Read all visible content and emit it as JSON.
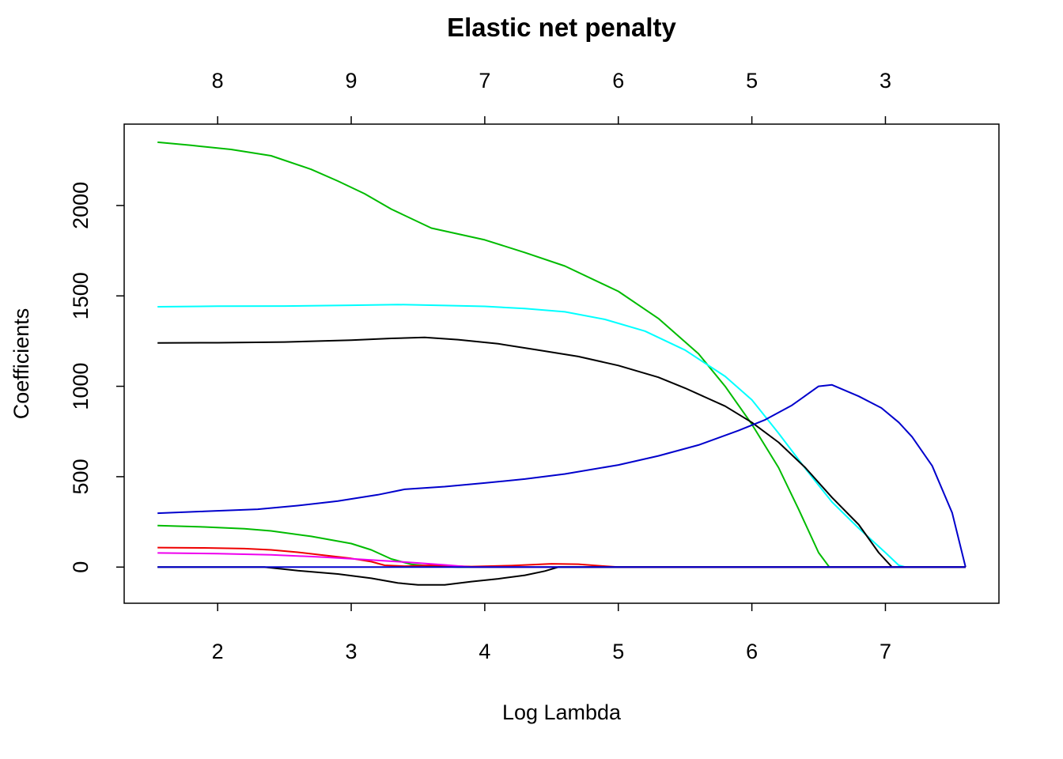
{
  "chart_data": {
    "type": "line",
    "title": "Elastic net penalty",
    "xlabel": "Log Lambda",
    "ylabel": "Coefficients",
    "xlim": [
      1.3,
      7.85
    ],
    "ylim": [
      -200,
      2450
    ],
    "x_ticks": [
      "2",
      "3",
      "4",
      "5",
      "6",
      "7"
    ],
    "y_ticks": [
      "0",
      "500",
      "1000",
      "1500",
      "2000"
    ],
    "top_axis": {
      "tick_positions": [
        2,
        3,
        4,
        5,
        6,
        7
      ],
      "labels": [
        "8",
        "9",
        "7",
        "6",
        "5",
        "3"
      ]
    },
    "grid": false,
    "series": [
      {
        "color": "#00BB00",
        "points": [
          [
            1.55,
            2350
          ],
          [
            1.8,
            2333
          ],
          [
            2.1,
            2310
          ],
          [
            2.4,
            2275
          ],
          [
            2.7,
            2200
          ],
          [
            2.9,
            2135
          ],
          [
            3.1,
            2065
          ],
          [
            3.3,
            1980
          ],
          [
            3.6,
            1875
          ],
          [
            4.0,
            1810
          ],
          [
            4.3,
            1740
          ],
          [
            4.6,
            1665
          ],
          [
            5.0,
            1525
          ],
          [
            5.3,
            1375
          ],
          [
            5.6,
            1180
          ],
          [
            5.8,
            1000
          ],
          [
            6.0,
            790
          ],
          [
            6.2,
            550
          ],
          [
            6.35,
            320
          ],
          [
            6.5,
            80
          ],
          [
            6.58,
            0
          ],
          [
            7.6,
            0
          ]
        ]
      },
      {
        "color": "#00FFFF",
        "points": [
          [
            1.55,
            1440
          ],
          [
            2.0,
            1443
          ],
          [
            2.5,
            1444
          ],
          [
            3.0,
            1448
          ],
          [
            3.35,
            1452
          ],
          [
            3.7,
            1447
          ],
          [
            4.0,
            1442
          ],
          [
            4.3,
            1430
          ],
          [
            4.6,
            1412
          ],
          [
            4.9,
            1370
          ],
          [
            5.2,
            1305
          ],
          [
            5.5,
            1200
          ],
          [
            5.8,
            1055
          ],
          [
            6.0,
            925
          ],
          [
            6.2,
            740
          ],
          [
            6.4,
            545
          ],
          [
            6.6,
            360
          ],
          [
            6.8,
            215
          ],
          [
            7.0,
            80
          ],
          [
            7.1,
            10
          ],
          [
            7.15,
            0
          ],
          [
            7.6,
            0
          ]
        ]
      },
      {
        "color": "#000000",
        "points": [
          [
            1.55,
            1240
          ],
          [
            2.0,
            1241
          ],
          [
            2.5,
            1245
          ],
          [
            3.0,
            1255
          ],
          [
            3.3,
            1265
          ],
          [
            3.55,
            1270
          ],
          [
            3.8,
            1258
          ],
          [
            4.1,
            1235
          ],
          [
            4.4,
            1200
          ],
          [
            4.7,
            1165
          ],
          [
            5.0,
            1115
          ],
          [
            5.3,
            1050
          ],
          [
            5.5,
            990
          ],
          [
            5.8,
            890
          ],
          [
            6.0,
            800
          ],
          [
            6.2,
            690
          ],
          [
            6.4,
            550
          ],
          [
            6.6,
            385
          ],
          [
            6.8,
            235
          ],
          [
            6.95,
            80
          ],
          [
            7.05,
            0
          ],
          [
            7.6,
            0
          ]
        ]
      },
      {
        "color": "#0000CC",
        "points": [
          [
            1.55,
            298
          ],
          [
            1.9,
            308
          ],
          [
            2.3,
            320
          ],
          [
            2.6,
            340
          ],
          [
            2.9,
            365
          ],
          [
            3.2,
            400
          ],
          [
            3.4,
            430
          ],
          [
            3.7,
            445
          ],
          [
            4.0,
            465
          ],
          [
            4.3,
            487
          ],
          [
            4.6,
            515
          ],
          [
            5.0,
            565
          ],
          [
            5.3,
            615
          ],
          [
            5.6,
            675
          ],
          [
            5.9,
            755
          ],
          [
            6.1,
            815
          ],
          [
            6.3,
            895
          ],
          [
            6.5,
            1000
          ],
          [
            6.6,
            1008
          ],
          [
            6.8,
            945
          ],
          [
            6.97,
            880
          ],
          [
            7.1,
            800
          ],
          [
            7.2,
            720
          ],
          [
            7.35,
            560
          ],
          [
            7.5,
            300
          ],
          [
            7.6,
            0
          ]
        ]
      },
      {
        "color": "#00BB00",
        "points": [
          [
            1.55,
            230
          ],
          [
            1.9,
            222
          ],
          [
            2.2,
            212
          ],
          [
            2.4,
            200
          ],
          [
            2.7,
            170
          ],
          [
            3.0,
            130
          ],
          [
            3.15,
            95
          ],
          [
            3.3,
            45
          ],
          [
            3.45,
            15
          ],
          [
            3.6,
            5
          ],
          [
            3.8,
            0
          ],
          [
            7.6,
            0
          ]
        ]
      },
      {
        "color": "#EE0000",
        "points": [
          [
            1.55,
            108
          ],
          [
            1.9,
            106
          ],
          [
            2.2,
            102
          ],
          [
            2.4,
            95
          ],
          [
            2.6,
            82
          ],
          [
            2.8,
            65
          ],
          [
            3.0,
            48
          ],
          [
            3.15,
            30
          ],
          [
            3.25,
            10
          ],
          [
            3.4,
            5
          ],
          [
            3.6,
            10
          ],
          [
            3.9,
            3
          ],
          [
            4.2,
            8
          ],
          [
            4.5,
            18
          ],
          [
            4.7,
            16
          ],
          [
            4.9,
            5
          ],
          [
            5.0,
            0
          ],
          [
            7.6,
            0
          ]
        ]
      },
      {
        "color": "#EE00EE",
        "points": [
          [
            1.55,
            78
          ],
          [
            2.0,
            74
          ],
          [
            2.4,
            68
          ],
          [
            2.8,
            55
          ],
          [
            3.1,
            42
          ],
          [
            3.4,
            28
          ],
          [
            3.7,
            12
          ],
          [
            3.9,
            0
          ],
          [
            7.6,
            0
          ]
        ]
      },
      {
        "color": "#000000",
        "points": [
          [
            1.55,
            0
          ],
          [
            2.35,
            0
          ],
          [
            2.6,
            -20
          ],
          [
            2.9,
            -38
          ],
          [
            3.15,
            -62
          ],
          [
            3.35,
            -88
          ],
          [
            3.5,
            -98
          ],
          [
            3.7,
            -98
          ],
          [
            3.9,
            -80
          ],
          [
            4.1,
            -65
          ],
          [
            4.3,
            -45
          ],
          [
            4.45,
            -22
          ],
          [
            4.55,
            0
          ],
          [
            7.6,
            0
          ]
        ]
      },
      {
        "color": "#0000CC",
        "points": [
          [
            1.55,
            0
          ],
          [
            7.6,
            0
          ]
        ]
      }
    ]
  }
}
